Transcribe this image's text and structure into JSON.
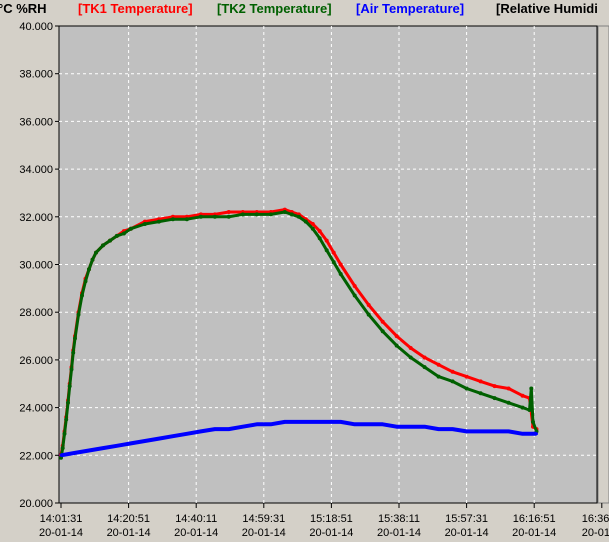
{
  "chart_data": {
    "type": "line",
    "ylabel": "°C %RH",
    "ylim": [
      20.0,
      40.0
    ],
    "yticks": [
      "40.000",
      "38.000",
      "36.000",
      "34.000",
      "32.000",
      "30.000",
      "28.000",
      "26.000",
      "24.000",
      "22.000",
      "20.000"
    ],
    "xticks": [
      {
        "time": "14:01:31",
        "date": "20-01-14"
      },
      {
        "time": "14:20:51",
        "date": "20-01-14"
      },
      {
        "time": "14:40:11",
        "date": "20-01-14"
      },
      {
        "time": "14:59:31",
        "date": "20-01-14"
      },
      {
        "time": "15:18:51",
        "date": "20-01-14"
      },
      {
        "time": "15:38:11",
        "date": "20-01-14"
      },
      {
        "time": "15:57:31",
        "date": "20-01-14"
      },
      {
        "time": "16:16:51",
        "date": "20-01-14"
      },
      {
        "time": "16:36",
        "date": "20-01"
      }
    ],
    "x_minutes_per_tick": 19.333,
    "grid": true,
    "legend_position": "top",
    "series": [
      {
        "name": "[TK1 Temperature]",
        "color": "#ff0000",
        "x": [
          0,
          0.5,
          1,
          1.5,
          2,
          2.5,
          3,
          3.5,
          4,
          5,
          6,
          7,
          8,
          9,
          10,
          12,
          14,
          16,
          18,
          20,
          24,
          28,
          32,
          36,
          40,
          44,
          48,
          52,
          56,
          60,
          64,
          66,
          68,
          70,
          72,
          74,
          76,
          78,
          80,
          84,
          88,
          92,
          96,
          100,
          104,
          108,
          112,
          116,
          120,
          124,
          128,
          132,
          134,
          135,
          136
        ],
        "values": [
          22.0,
          22.4,
          23.0,
          23.6,
          24.3,
          25.0,
          25.7,
          26.4,
          27.0,
          28.0,
          28.8,
          29.4,
          29.8,
          30.2,
          30.5,
          30.8,
          31.0,
          31.2,
          31.4,
          31.5,
          31.8,
          31.9,
          32.0,
          32.0,
          32.1,
          32.1,
          32.2,
          32.2,
          32.2,
          32.2,
          32.3,
          32.2,
          32.1,
          31.9,
          31.7,
          31.4,
          31.0,
          30.5,
          30.0,
          29.1,
          28.3,
          27.6,
          27.0,
          26.5,
          26.1,
          25.8,
          25.5,
          25.3,
          25.1,
          24.9,
          24.8,
          24.5,
          24.4,
          23.2,
          23.1
        ]
      },
      {
        "name": "[TK2 Temperature]",
        "color": "#006000",
        "x": [
          0,
          0.5,
          1,
          1.5,
          2,
          2.5,
          3,
          3.5,
          4,
          5,
          6,
          7,
          8,
          9,
          10,
          12,
          14,
          16,
          18,
          20,
          24,
          28,
          32,
          36,
          40,
          44,
          48,
          52,
          56,
          60,
          64,
          66,
          68,
          70,
          72,
          74,
          76,
          78,
          80,
          84,
          88,
          92,
          96,
          100,
          104,
          108,
          112,
          116,
          120,
          124,
          128,
          132,
          134,
          134.5,
          135,
          136
        ],
        "values": [
          21.9,
          22.3,
          22.9,
          23.5,
          24.2,
          24.9,
          25.6,
          26.3,
          26.9,
          27.9,
          28.7,
          29.3,
          29.8,
          30.2,
          30.5,
          30.8,
          31.0,
          31.2,
          31.3,
          31.5,
          31.7,
          31.8,
          31.9,
          31.9,
          32.0,
          32.0,
          32.0,
          32.1,
          32.1,
          32.1,
          32.2,
          32.1,
          32.0,
          31.8,
          31.5,
          31.1,
          30.6,
          30.1,
          29.6,
          28.7,
          27.9,
          27.2,
          26.6,
          26.1,
          25.7,
          25.3,
          25.1,
          24.8,
          24.6,
          24.4,
          24.2,
          24.0,
          23.9,
          24.8,
          23.4,
          23.0
        ]
      },
      {
        "name": "[Air Temperature]",
        "color": "#0000ff",
        "x": [
          0,
          4,
          8,
          12,
          16,
          20,
          24,
          28,
          32,
          36,
          40,
          44,
          48,
          52,
          56,
          60,
          64,
          68,
          72,
          76,
          80,
          84,
          88,
          92,
          96,
          100,
          104,
          108,
          112,
          116,
          120,
          124,
          128,
          132,
          136
        ],
        "values": [
          22.0,
          22.1,
          22.2,
          22.3,
          22.4,
          22.5,
          22.6,
          22.7,
          22.8,
          22.9,
          23.0,
          23.1,
          23.1,
          23.2,
          23.3,
          23.3,
          23.4,
          23.4,
          23.4,
          23.4,
          23.4,
          23.3,
          23.3,
          23.3,
          23.2,
          23.2,
          23.2,
          23.1,
          23.1,
          23.0,
          23.0,
          23.0,
          23.0,
          22.9,
          22.9
        ]
      },
      {
        "name": "[Relative Humidi",
        "color": "#000000",
        "x": [],
        "values": []
      }
    ]
  }
}
